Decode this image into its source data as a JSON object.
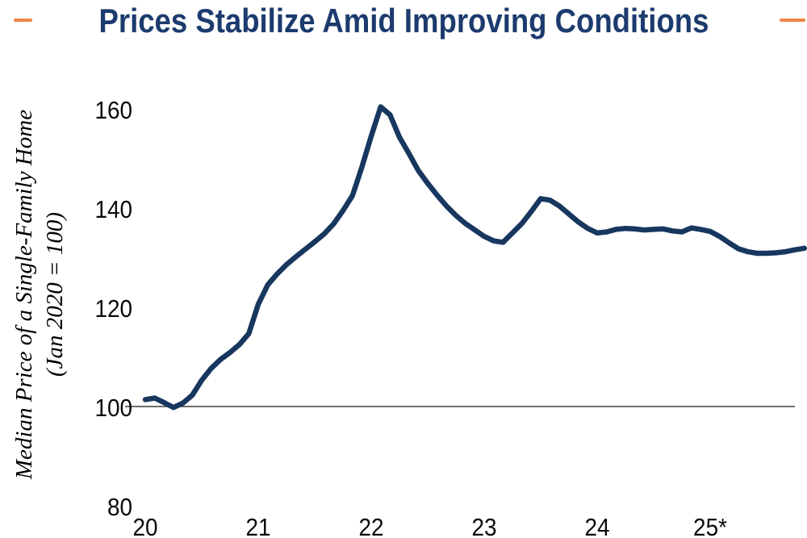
{
  "header": {
    "title": "Prices Stabilize Amid Improving Conditions"
  },
  "y_axis": {
    "label_line1": "Median Price of a Single-Family Home",
    "label_line2": "(Jan 2020 = 100)"
  },
  "colors": {
    "line_navy": "#17375F",
    "title_navy": "#1C3B6E",
    "accent_orange": "#EF8546",
    "tick_black": "#0A0A0A",
    "baseline_gray": "#3A3A3A"
  },
  "chart_data": {
    "type": "line",
    "title": "Prices Stabilize Amid Improving Conditions",
    "ylabel": "Median Price of a Single-Family Home (Jan 2020 = 100)",
    "xlabel": "",
    "x_tick_labels": [
      "20",
      "21",
      "22",
      "23",
      "24",
      "25*"
    ],
    "y_ticks": [
      160,
      140,
      120,
      100,
      80
    ],
    "ylim": [
      80,
      165
    ],
    "grid": false,
    "legend": "none",
    "reference_line_y": 100,
    "series": [
      {
        "name": "Median price of a single-family home, indexed (Jan 2020 = 100)",
        "start": "2020-01",
        "frequency": "monthly",
        "values": [
          101.4,
          101.7,
          100.8,
          99.8,
          100.7,
          102.3,
          105.3,
          107.7,
          109.5,
          110.9,
          112.5,
          114.7,
          120.6,
          124.5,
          126.7,
          128.6,
          130.2,
          131.7,
          133.2,
          134.8,
          136.8,
          139.5,
          142.5,
          148.2,
          154.5,
          160.4,
          158.8,
          154.3,
          151.0,
          147.6,
          145.0,
          142.6,
          140.4,
          138.5,
          136.9,
          135.6,
          134.3,
          133.4,
          133.1,
          135.0,
          136.9,
          139.3,
          141.9,
          141.6,
          140.4,
          138.8,
          137.2,
          135.9,
          135.0,
          135.2,
          135.7,
          135.9,
          135.8,
          135.6,
          135.7,
          135.8,
          135.4,
          135.2,
          136.0,
          135.7,
          135.3,
          134.3,
          133.0,
          131.8,
          131.2,
          130.9,
          130.9,
          131.0,
          131.2,
          131.6,
          131.9
        ]
      }
    ]
  }
}
